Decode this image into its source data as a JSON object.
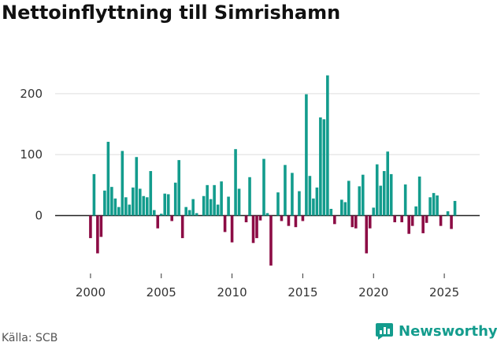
{
  "title": "Nettoinflyttning till Simrishamn",
  "source": "Källa: SCB",
  "brand": "Newsworthy",
  "colors": {
    "positive": "#139c8d",
    "negative": "#8c0c45",
    "grid": "#dddddd",
    "axis": "#222222",
    "brand": "#139c8d"
  },
  "chart_data": {
    "type": "bar",
    "title": "Nettoinflyttning till Simrishamn",
    "xlabel": "",
    "ylabel": "",
    "xlim": [
      1997.5,
      2027.5
    ],
    "ylim": [
      -85,
      240
    ],
    "yticks": [
      0,
      100,
      200
    ],
    "xticks": [
      2000,
      2005,
      2010,
      2015,
      2020,
      2025
    ],
    "grid": true,
    "unit": "quarter",
    "start": 2000,
    "values": [
      -37,
      68,
      -62,
      -35,
      41,
      121,
      47,
      28,
      14,
      106,
      30,
      18,
      46,
      96,
      44,
      32,
      30,
      73,
      9,
      -21,
      3,
      36,
      35,
      -9,
      54,
      91,
      -37,
      14,
      9,
      27,
      4,
      0,
      32,
      50,
      27,
      50,
      18,
      56,
      -27,
      31,
      -44,
      109,
      44,
      0,
      -11,
      63,
      -45,
      -37,
      -8,
      93,
      4,
      -82,
      0,
      38,
      -9,
      83,
      -17,
      70,
      -19,
      40,
      -9,
      199,
      65,
      28,
      46,
      161,
      158,
      230,
      11,
      -14,
      0,
      26,
      22,
      57,
      -19,
      -21,
      48,
      67,
      -62,
      -21,
      13,
      84,
      49,
      73,
      105,
      68,
      -11,
      0,
      -11,
      51,
      -30,
      -17,
      15,
      64,
      -29,
      -12,
      30,
      37,
      33,
      -17,
      0,
      7,
      -22,
      24
    ]
  }
}
